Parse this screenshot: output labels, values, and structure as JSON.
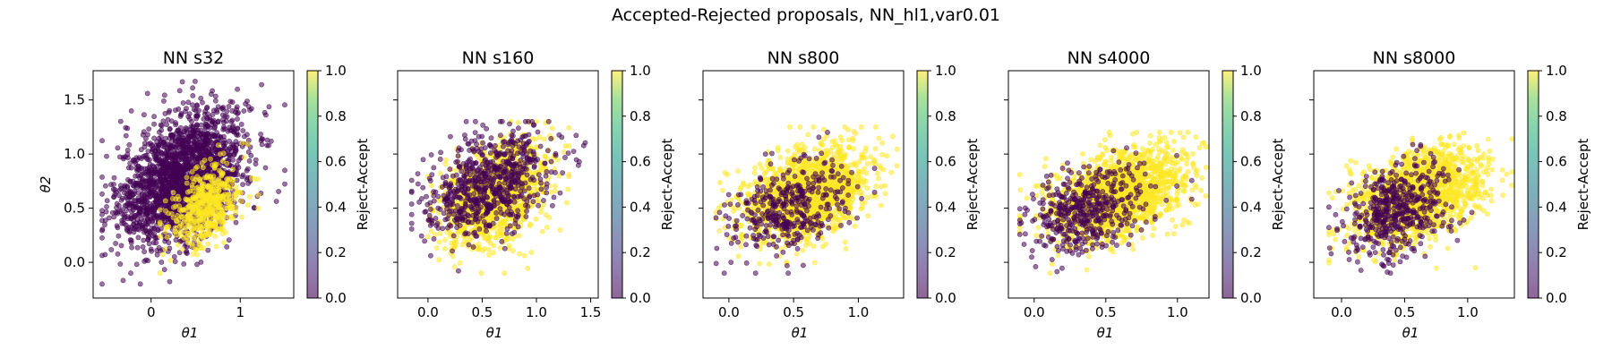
{
  "figure": {
    "suptitle": "Accepted-Rejected proposals, NN_hl1,var0.01"
  },
  "colors": {
    "accepted": "#fde725",
    "rejected": "#440154",
    "point_alpha": 0.55,
    "colormap": "viridis"
  },
  "chart_data": [
    {
      "type": "scatter",
      "title": "NN s32",
      "xlabel": "θ1",
      "ylabel": "θ2",
      "xlim": [
        -0.65,
        1.6
      ],
      "ylim": [
        -0.33,
        1.77
      ],
      "xticks": [
        0,
        1
      ],
      "yticks": [
        0.0,
        0.5,
        1.0,
        1.5
      ],
      "colorbar": {
        "label": "Reject-Accept",
        "ticks": [
          0.0,
          0.2,
          0.4,
          0.6,
          0.8,
          1.0
        ],
        "range": [
          0.0,
          1.0
        ]
      },
      "series": [
        {
          "value": 0.0,
          "center": [
            0.35,
            0.78
          ],
          "spread": [
            0.36,
            0.28
          ],
          "count": 2000,
          "range_x": [
            -0.55,
            1.5
          ],
          "range_y": [
            -0.2,
            1.68
          ]
        },
        {
          "value": 1.0,
          "center": [
            0.62,
            0.52
          ],
          "spread": [
            0.2,
            0.18
          ],
          "count": 500,
          "range_x": [
            0.1,
            1.2
          ],
          "range_y": [
            -0.1,
            1.1
          ]
        }
      ]
    },
    {
      "type": "scatter",
      "title": "NN s160",
      "xlabel": "θ1",
      "ylabel": "",
      "xlim": [
        -0.28,
        1.57
      ],
      "ylim": [
        -0.33,
        1.77
      ],
      "xticks": [
        0.0,
        0.5,
        1.0,
        1.5
      ],
      "yticks": [
        0.0,
        0.5,
        1.0,
        1.5
      ],
      "colorbar": {
        "label": "Reject-Accept",
        "ticks": [
          0.0,
          0.2,
          0.4,
          0.6,
          0.8,
          1.0
        ],
        "range": [
          0.0,
          1.0
        ]
      },
      "series": [
        {
          "value": 1.0,
          "center": [
            0.62,
            0.62
          ],
          "spread": [
            0.24,
            0.22
          ],
          "count": 1200,
          "range_x": [
            0.0,
            1.3
          ],
          "range_y": [
            -0.1,
            1.3
          ]
        },
        {
          "value": 0.0,
          "center": [
            0.55,
            0.72
          ],
          "spread": [
            0.3,
            0.24
          ],
          "count": 700,
          "range_x": [
            -0.15,
            1.45
          ],
          "range_y": [
            -0.25,
            1.3
          ]
        }
      ]
    },
    {
      "type": "scatter",
      "title": "NN s800",
      "xlabel": "θ1",
      "ylabel": "",
      "xlim": [
        -0.2,
        1.35
      ],
      "ylim": [
        -0.33,
        1.77
      ],
      "xticks": [
        0.0,
        0.5,
        1.0
      ],
      "yticks": [
        0.0,
        0.5,
        1.0,
        1.5
      ],
      "colorbar": {
        "label": "Reject-Accept",
        "ticks": [
          0.0,
          0.2,
          0.4,
          0.6,
          0.8,
          1.0
        ],
        "range": [
          0.0,
          1.0
        ]
      },
      "series": [
        {
          "value": 1.0,
          "center": [
            0.6,
            0.62
          ],
          "spread": [
            0.24,
            0.2
          ],
          "count": 1500,
          "range_x": [
            -0.1,
            1.3
          ],
          "range_y": [
            -0.1,
            1.25
          ]
        },
        {
          "value": 0.0,
          "center": [
            0.45,
            0.5
          ],
          "spread": [
            0.24,
            0.2
          ],
          "count": 380,
          "range_x": [
            -0.1,
            1.3
          ],
          "range_y": [
            -0.1,
            1.2
          ]
        }
      ]
    },
    {
      "type": "scatter",
      "title": "NN s4000",
      "xlabel": "θ1",
      "ylabel": "",
      "xlim": [
        -0.18,
        1.22
      ],
      "ylim": [
        -0.33,
        1.77
      ],
      "xticks": [
        0.0,
        0.5,
        1.0
      ],
      "yticks": [
        0.0,
        0.5,
        1.0,
        1.5
      ],
      "colorbar": {
        "label": "Reject-Accept",
        "ticks": [
          0.0,
          0.2,
          0.4,
          0.6,
          0.8,
          1.0
        ],
        "range": [
          0.0,
          1.0
        ]
      },
      "series": [
        {
          "value": 1.0,
          "center": [
            0.58,
            0.62
          ],
          "spread": [
            0.24,
            0.2
          ],
          "count": 1600,
          "range_x": [
            -0.1,
            1.2
          ],
          "range_y": [
            -0.1,
            1.2
          ]
        },
        {
          "value": 0.0,
          "center": [
            0.38,
            0.48
          ],
          "spread": [
            0.2,
            0.2
          ],
          "count": 450,
          "range_x": [
            -0.1,
            1.1
          ],
          "range_y": [
            -0.1,
            1.1
          ]
        }
      ]
    },
    {
      "type": "scatter",
      "title": "NN s8000",
      "xlabel": "θ1",
      "ylabel": "",
      "xlim": [
        -0.22,
        1.37
      ],
      "ylim": [
        -0.33,
        1.77
      ],
      "xticks": [
        0.0,
        0.5,
        1.0
      ],
      "yticks": [
        0.0,
        0.5,
        1.0,
        1.5
      ],
      "colorbar": {
        "label": "Reject-Accept",
        "ticks": [
          0.0,
          0.2,
          0.4,
          0.6,
          0.8,
          1.0
        ],
        "range": [
          0.0,
          1.0
        ]
      },
      "series": [
        {
          "value": 1.0,
          "center": [
            0.6,
            0.62
          ],
          "spread": [
            0.25,
            0.2
          ],
          "count": 1500,
          "range_x": [
            -0.1,
            1.35
          ],
          "range_y": [
            -0.1,
            1.2
          ]
        },
        {
          "value": 0.0,
          "center": [
            0.42,
            0.48
          ],
          "spread": [
            0.22,
            0.2
          ],
          "count": 480,
          "range_x": [
            -0.1,
            1.2
          ],
          "range_y": [
            -0.1,
            1.1
          ]
        }
      ]
    }
  ]
}
